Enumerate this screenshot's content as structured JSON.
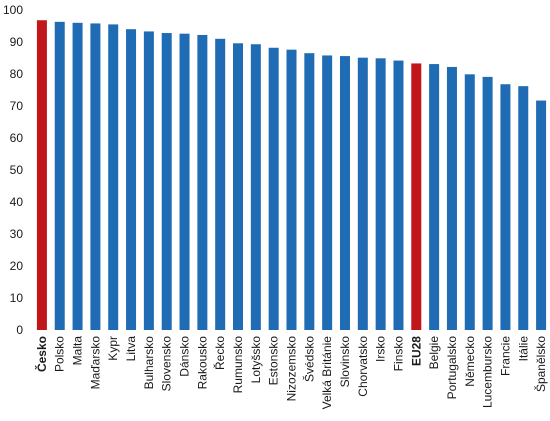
{
  "chart_data": {
    "type": "bar",
    "title": "",
    "xlabel": "",
    "ylabel": "",
    "ylim": [
      0,
      100
    ],
    "yticks": [
      0,
      10,
      20,
      30,
      40,
      50,
      60,
      70,
      80,
      90,
      100
    ],
    "grid": false,
    "legend": "none",
    "colors": {
      "default": "#1f6bb4",
      "highlight": "#c0161c"
    },
    "highlight_categories": [
      "Česko",
      "EU28"
    ],
    "categories": [
      "Česko",
      "Polsko",
      "Malta",
      "Maďarsko",
      "Kypr",
      "Litva",
      "Bulharsko",
      "Slovensko",
      "Dánsko",
      "Rakousko",
      "Řecko",
      "Rumunsko",
      "Lotyšsko",
      "Estonsko",
      "Nizozemsko",
      "Švédsko",
      "Velká Británie",
      "Slovinsko",
      "Chorvatsko",
      "Irsko",
      "Finsko",
      "EU28",
      "Belgie",
      "Portugalsko",
      "Německo",
      "Lucembursko",
      "Francie",
      "Itálie",
      "Španělsko"
    ],
    "values": [
      96.8,
      96.3,
      96.0,
      95.8,
      95.5,
      94.0,
      93.3,
      92.8,
      92.6,
      92.2,
      91.0,
      89.6,
      89.3,
      88.2,
      87.6,
      86.5,
      85.8,
      85.6,
      85.1,
      84.9,
      84.2,
      83.3,
      83.1,
      82.2,
      79.9,
      79.1,
      76.8,
      76.2,
      71.7
    ]
  }
}
